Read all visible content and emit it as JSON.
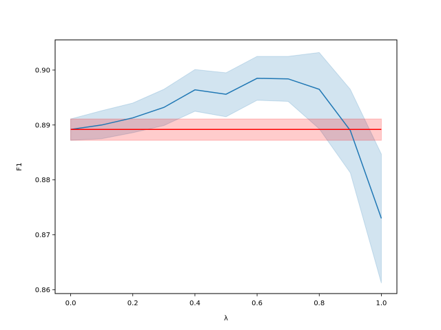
{
  "chart_data": {
    "type": "line",
    "xlabel": "λ",
    "ylabel": "F1",
    "xlim": [
      -0.05,
      1.05
    ],
    "ylim": [
      0.8593,
      0.9055
    ],
    "xticks": [
      0.0,
      0.2,
      0.4,
      0.6,
      0.8,
      1.0
    ],
    "xtick_labels": [
      "0.0",
      "0.2",
      "0.4",
      "0.6",
      "0.8",
      "1.0"
    ],
    "yticks": [
      0.86,
      0.87,
      0.88,
      0.89,
      0.9
    ],
    "ytick_labels": [
      "0.86",
      "0.87",
      "0.88",
      "0.89",
      "0.90"
    ],
    "grid": false,
    "series": [
      {
        "color": "#1f77b4",
        "band_color": "#1f77b4",
        "band_opacity": 0.2,
        "x": [
          0.0,
          0.1,
          0.2,
          0.3,
          0.4,
          0.5,
          0.6,
          0.7,
          0.8,
          0.9,
          1.0
        ],
        "y": [
          0.8892,
          0.89,
          0.8913,
          0.8932,
          0.8964,
          0.8956,
          0.8985,
          0.8984,
          0.8965,
          0.889,
          0.873
        ],
        "lower": [
          0.8872,
          0.8875,
          0.8886,
          0.8899,
          0.8925,
          0.8915,
          0.8945,
          0.8943,
          0.8893,
          0.8813,
          0.8612
        ],
        "upper": [
          0.8911,
          0.8926,
          0.894,
          0.8965,
          0.9001,
          0.8995,
          0.9025,
          0.9025,
          0.9032,
          0.8965,
          0.8847
        ]
      },
      {
        "color": "#ff0000",
        "band_color": "#ff0000",
        "band_opacity": 0.2,
        "x": [
          0.0,
          1.0
        ],
        "y": [
          0.8892,
          0.8892
        ],
        "lower": [
          0.8872,
          0.8872
        ],
        "upper": [
          0.8911,
          0.8911
        ]
      }
    ]
  }
}
